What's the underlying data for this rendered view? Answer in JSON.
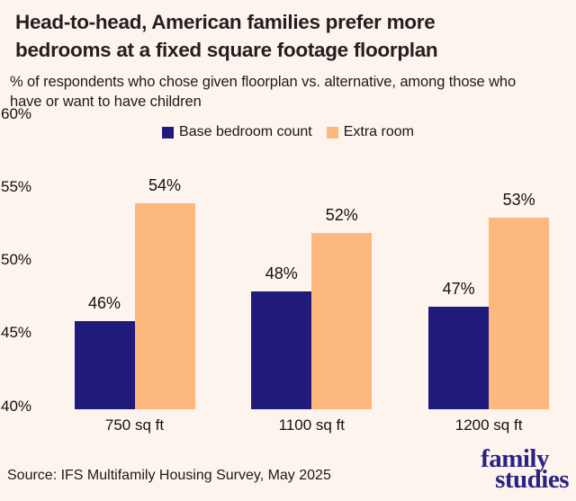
{
  "page": {
    "background_color": "#fdf4ed"
  },
  "header": {
    "title_lines": [
      "Head-to-head, American families prefer more",
      "bedrooms at a fixed square footage floorplan"
    ],
    "subtitle_lines": [
      "% of respondents who chose given floorplan vs. alternative, among those who",
      "have or want to have children"
    ]
  },
  "chart_data": {
    "type": "bar",
    "title": "Head-to-head, American families prefer more bedrooms at a fixed square footage floorplan",
    "subtitle": "% of respondents who chose given floorplan vs. alternative, among those who have or want to have children",
    "categories": [
      "750 sq ft",
      "1100 sq ft",
      "1200 sq ft"
    ],
    "series": [
      {
        "name": "Base bedroom count",
        "color": "#201a7b",
        "values": [
          46,
          48,
          47
        ]
      },
      {
        "name": "Extra room",
        "color": "#fdb87e",
        "values": [
          54,
          52,
          53
        ]
      }
    ],
    "value_label_format": "{v}%",
    "ylim": [
      40,
      60
    ],
    "yticks": [
      60,
      55,
      50,
      45,
      40
    ],
    "ytick_format": "{v}%",
    "xlabel": "",
    "ylabel": "",
    "grid": false,
    "legend_position": "top-center"
  },
  "footer": {
    "source": "Source: IFS Multifamily Housing Survey, May 2025",
    "logo": {
      "line1": "family",
      "line2": "studies",
      "color": "#2a2383"
    }
  }
}
